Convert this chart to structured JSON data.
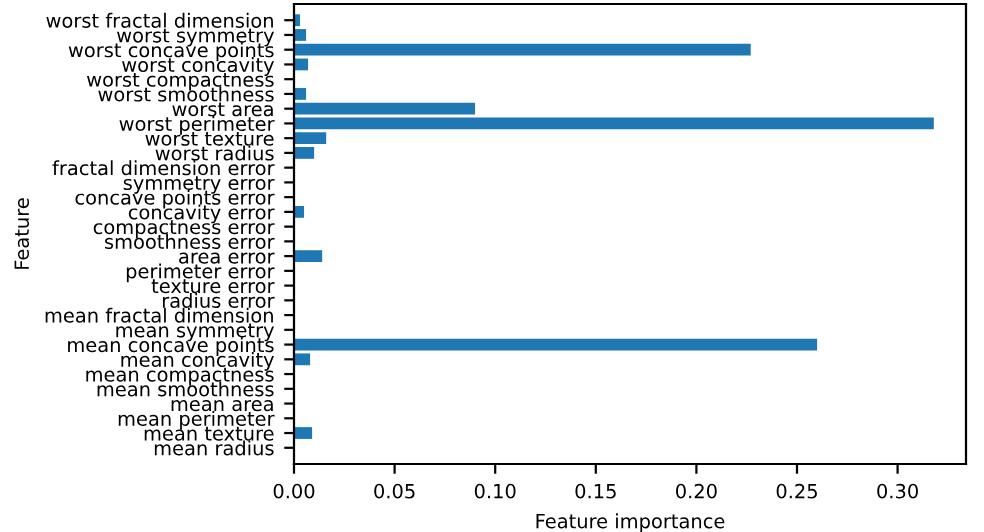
{
  "chart_data": {
    "type": "bar",
    "orientation": "horizontal",
    "xlabel": "Feature importance",
    "ylabel": "Feature",
    "categories": [
      "worst fractal dimension",
      "worst symmetry",
      "worst concave points",
      "worst concavity",
      "worst compactness",
      "worst smoothness",
      "worst area",
      "worst perimeter",
      "worst texture",
      "worst radius",
      "fractal dimension error",
      "symmetry error",
      "concave points error",
      "concavity error",
      "compactness error",
      "smoothness error",
      "area error",
      "perimeter error",
      "texture error",
      "radius error",
      "mean fractal dimension",
      "mean symmetry",
      "mean concave points",
      "mean concavity",
      "mean compactness",
      "mean smoothness",
      "mean area",
      "mean perimeter",
      "mean texture",
      "mean radius"
    ],
    "values": [
      0.003,
      0.006,
      0.227,
      0.007,
      0,
      0.006,
      0.09,
      0.318,
      0.016,
      0.01,
      0,
      0,
      0,
      0.005,
      0,
      0,
      0.014,
      0,
      0,
      0,
      0,
      0,
      0.26,
      0.008,
      0,
      0,
      0,
      0,
      0.009,
      0
    ],
    "color": "#1f77b4",
    "xlim": [
      0,
      0.334
    ],
    "xticks": [
      {
        "value": 0,
        "label": "0.00"
      },
      0.05,
      {
        "value": 0.1,
        "label": "0.10"
      },
      0.15,
      {
        "value": 0.2,
        "label": "0.20"
      },
      0.25,
      {
        "value": 0.3,
        "label": "0.30"
      }
    ]
  }
}
